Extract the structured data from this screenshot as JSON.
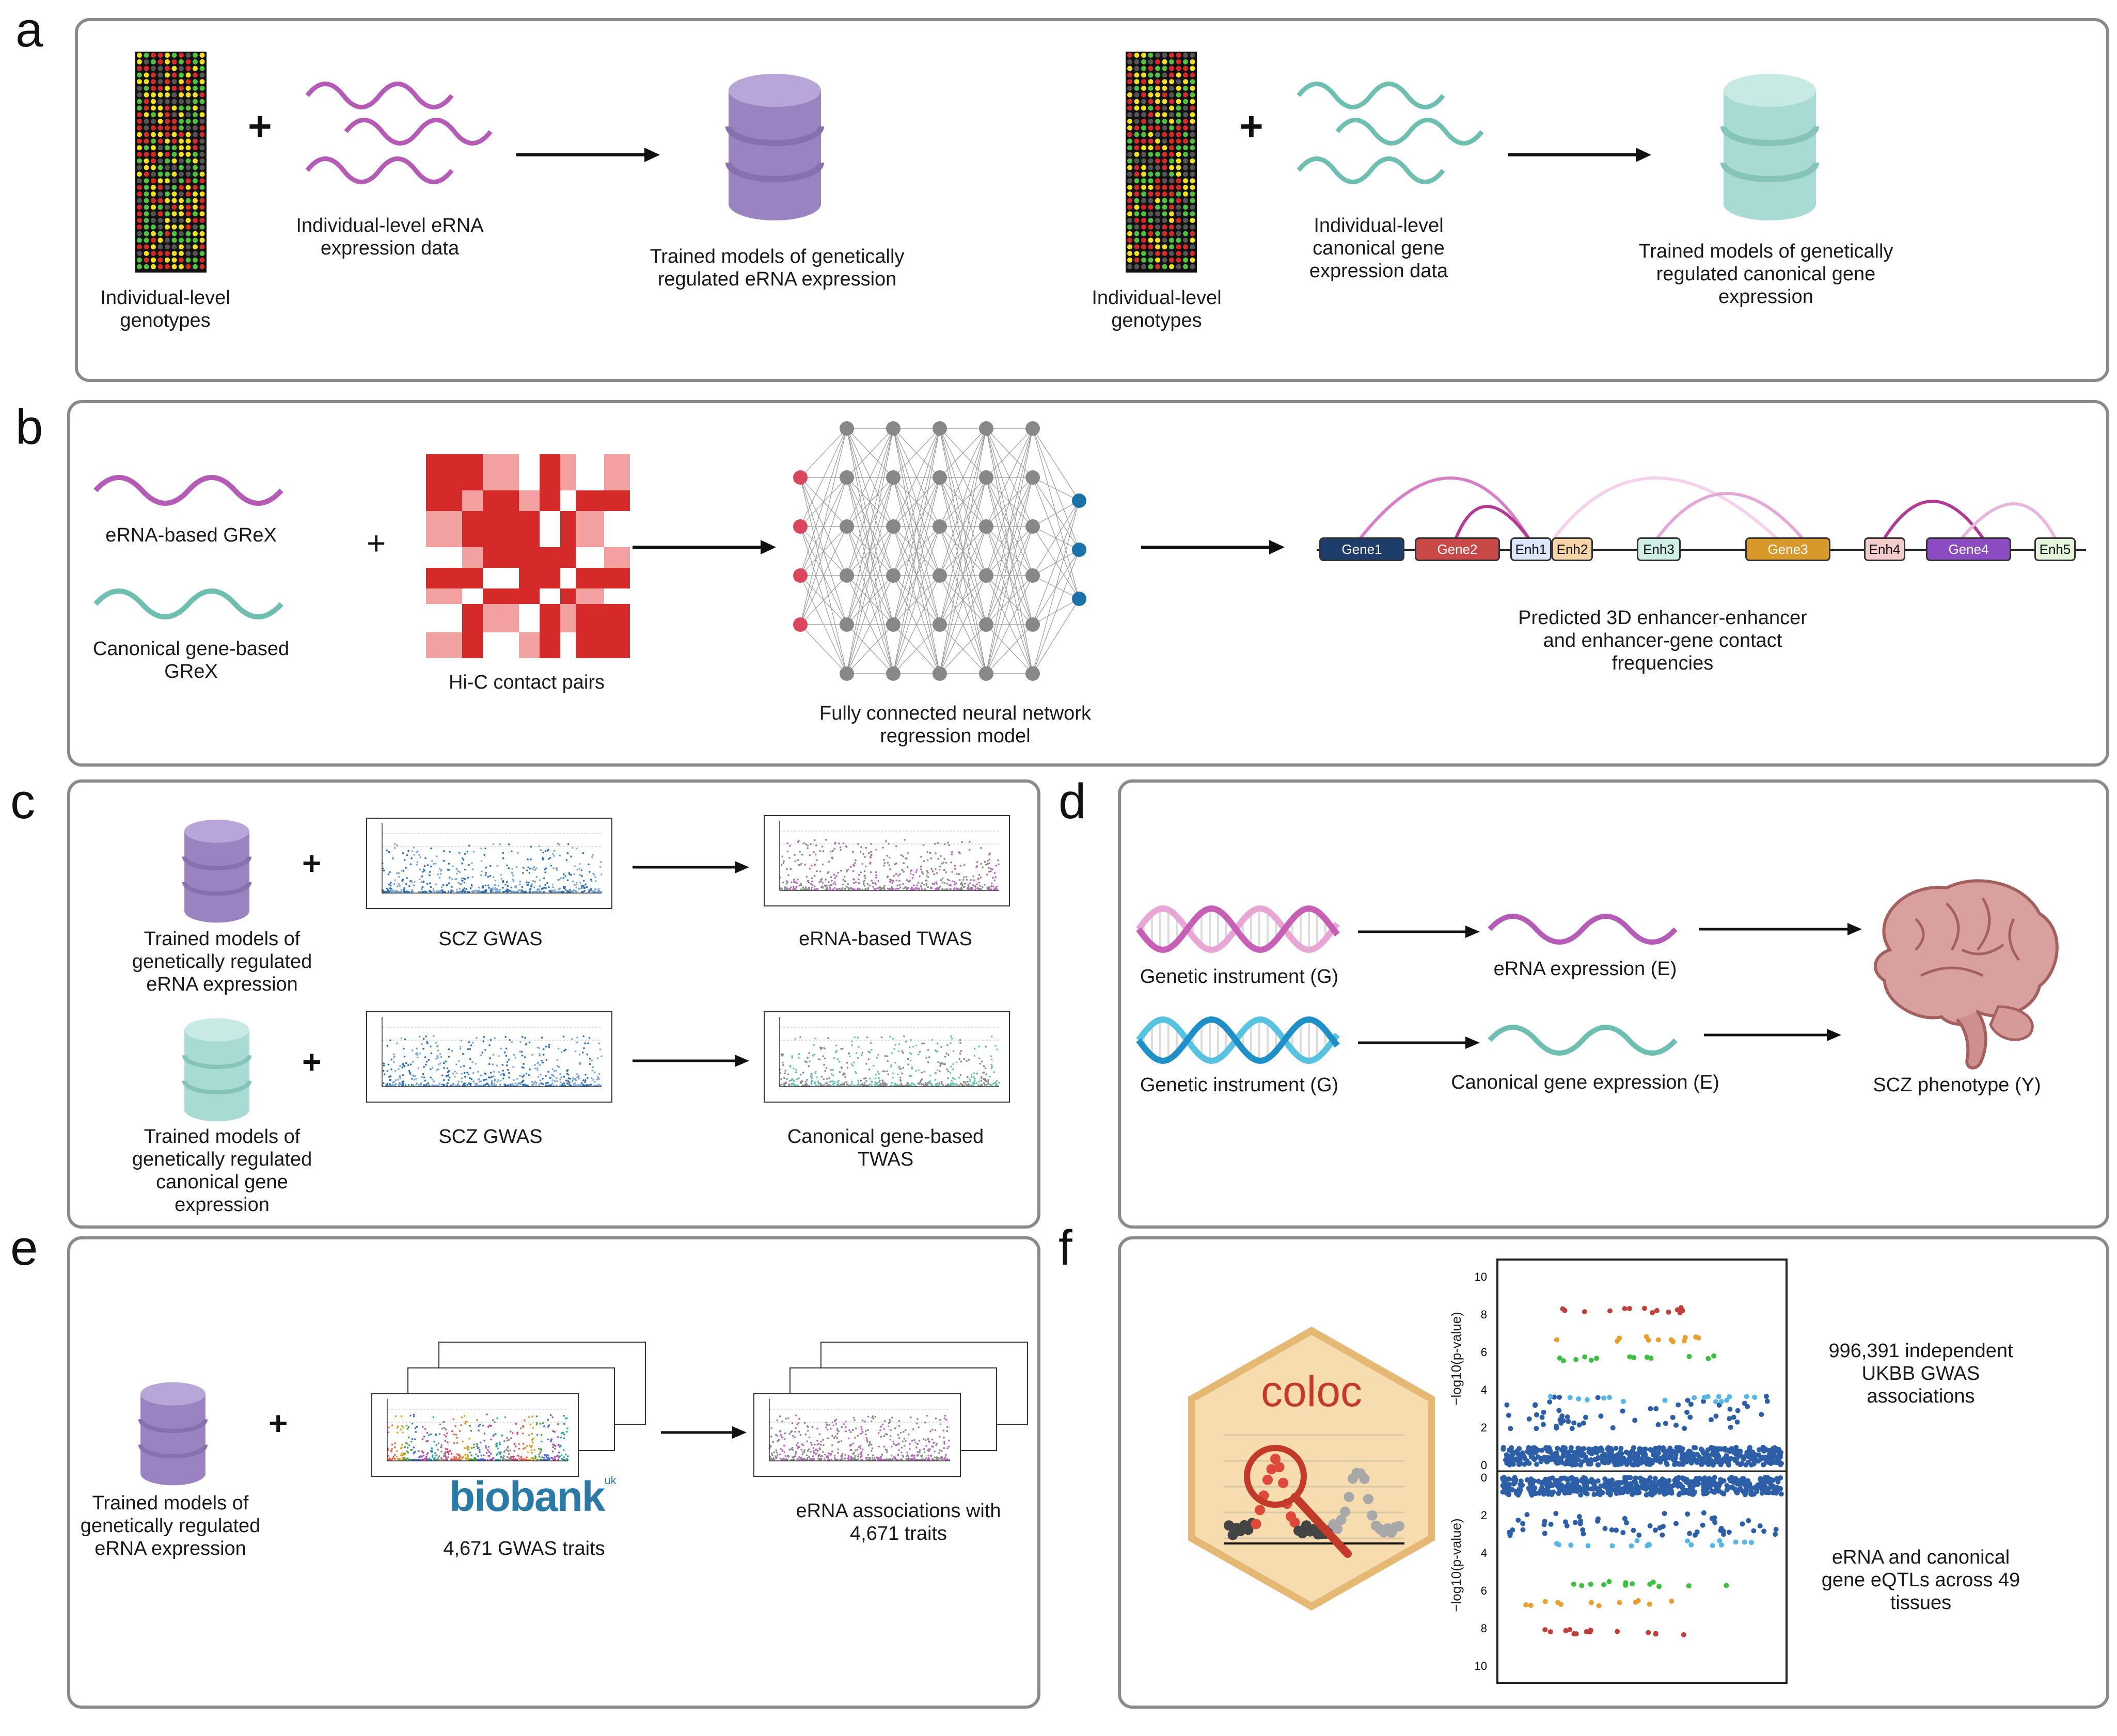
{
  "labels": {
    "a": "a",
    "b": "b",
    "c": "c",
    "d": "d",
    "e": "e",
    "f": "f"
  },
  "panel_a": {
    "geno1": "Individual-level genotypes",
    "erna_expr": "Individual-level eRNA expression data",
    "trained_erna": "Trained models of genetically regulated eRNA expression",
    "geno2": "Individual-level genotypes",
    "canon_expr": "Individual-level canonical gene expression data",
    "trained_canon": "Trained models of genetically regulated canonical gene expression",
    "plus": "+"
  },
  "panel_b": {
    "erna_grex": "eRNA-based GReX",
    "canon_grex": "Canonical gene-based GReX",
    "hic": "Hi-C contact pairs",
    "nn": "Fully connected neural network regression model",
    "predicted": "Predicted 3D enhancer-enhancer and enhancer-gene contact frequencies",
    "plus": "+",
    "genes": [
      "Gene1",
      "Gene2",
      "Enh1",
      "Enh2",
      "Enh3",
      "Gene3",
      "Enh4",
      "Gene4",
      "Enh5"
    ]
  },
  "panel_c": {
    "trained_erna": "Trained models of genetically regulated eRNA expression",
    "scz_gwas1": "SCZ GWAS",
    "erna_twas": "eRNA-based TWAS",
    "trained_canon": "Trained models of genetically regulated canonical gene expression",
    "scz_gwas2": "SCZ GWAS",
    "canon_twas": "Canonical gene-based TWAS",
    "plus": "+"
  },
  "panel_d": {
    "gi1": "Genetic instrument (G)",
    "erna_e": "eRNA expression (E)",
    "gi2": "Genetic instrument (G)",
    "canon_e": "Canonical gene expression (E)",
    "scz": "SCZ phenotype (Y)"
  },
  "panel_e": {
    "trained_erna": "Trained models of genetically regulated eRNA expression",
    "biobank": "biobank",
    "uk": "uk",
    "gwas_traits": "4,671 GWAS traits",
    "erna_assoc": "eRNA associations with 4,671 traits",
    "plus": "+"
  },
  "panel_f": {
    "coloc": "coloc",
    "ukbb": "996,391 independent UKBB GWAS associations",
    "eqtl": "eRNA and canonical gene eQTLs across 49 tissues",
    "ylabel": "−log10(p-value)",
    "ticks_top": [
      "10",
      "8",
      "6",
      "4",
      "2",
      "0"
    ],
    "ticks_bottom": [
      "0",
      "2",
      "4",
      "6",
      "8",
      "10"
    ]
  },
  "colors": {
    "erna": "#b35bb5",
    "canonical": "#6fbfb1",
    "db_erna": "#9a83c0",
    "db_canon": "#a8dbd3",
    "hic_red": "#d42a2a",
    "hic_pink": "#f2a0a0"
  }
}
